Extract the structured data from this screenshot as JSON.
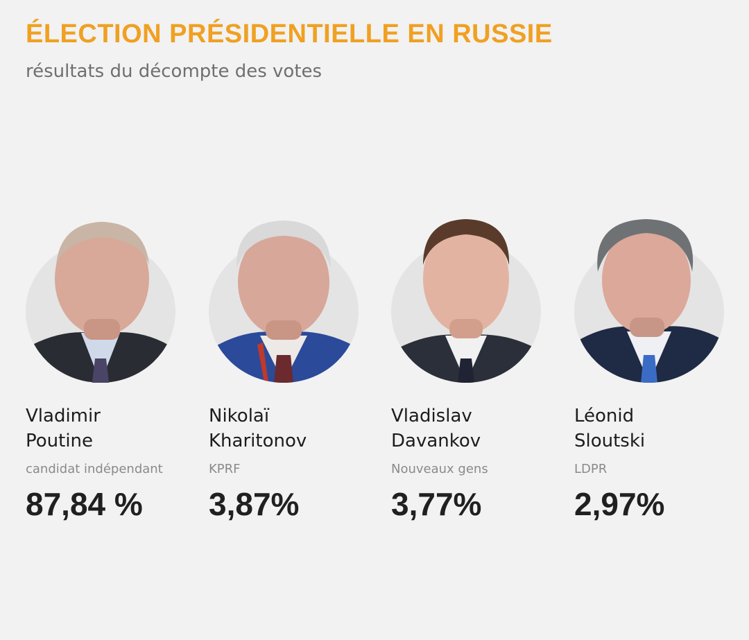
{
  "header": {
    "title": "ÉLECTION PRÉSIDENTIELLE EN RUSSIE",
    "subtitle": "résultats du décompte des votes"
  },
  "colors": {
    "accent": "#f0a022",
    "background": "#f2f2f2"
  },
  "candidates": [
    {
      "first_name": "Vladimir",
      "last_name": "Poutine",
      "party": "candidat indépendant",
      "result": "87,84 %",
      "portrait": "portrait-photo"
    },
    {
      "first_name": "Nikolaï",
      "last_name": "Kharitonov",
      "party": "KPRF",
      "result": "3,87%",
      "portrait": "portrait-photo"
    },
    {
      "first_name": "Vladislav",
      "last_name": "Davankov",
      "party": "Nouveaux gens",
      "result": "3,77%",
      "portrait": "portrait-photo"
    },
    {
      "first_name": "Léonid",
      "last_name": "Sloutski",
      "party": "LDPR",
      "result": "2,97%",
      "portrait": "portrait-photo"
    }
  ]
}
